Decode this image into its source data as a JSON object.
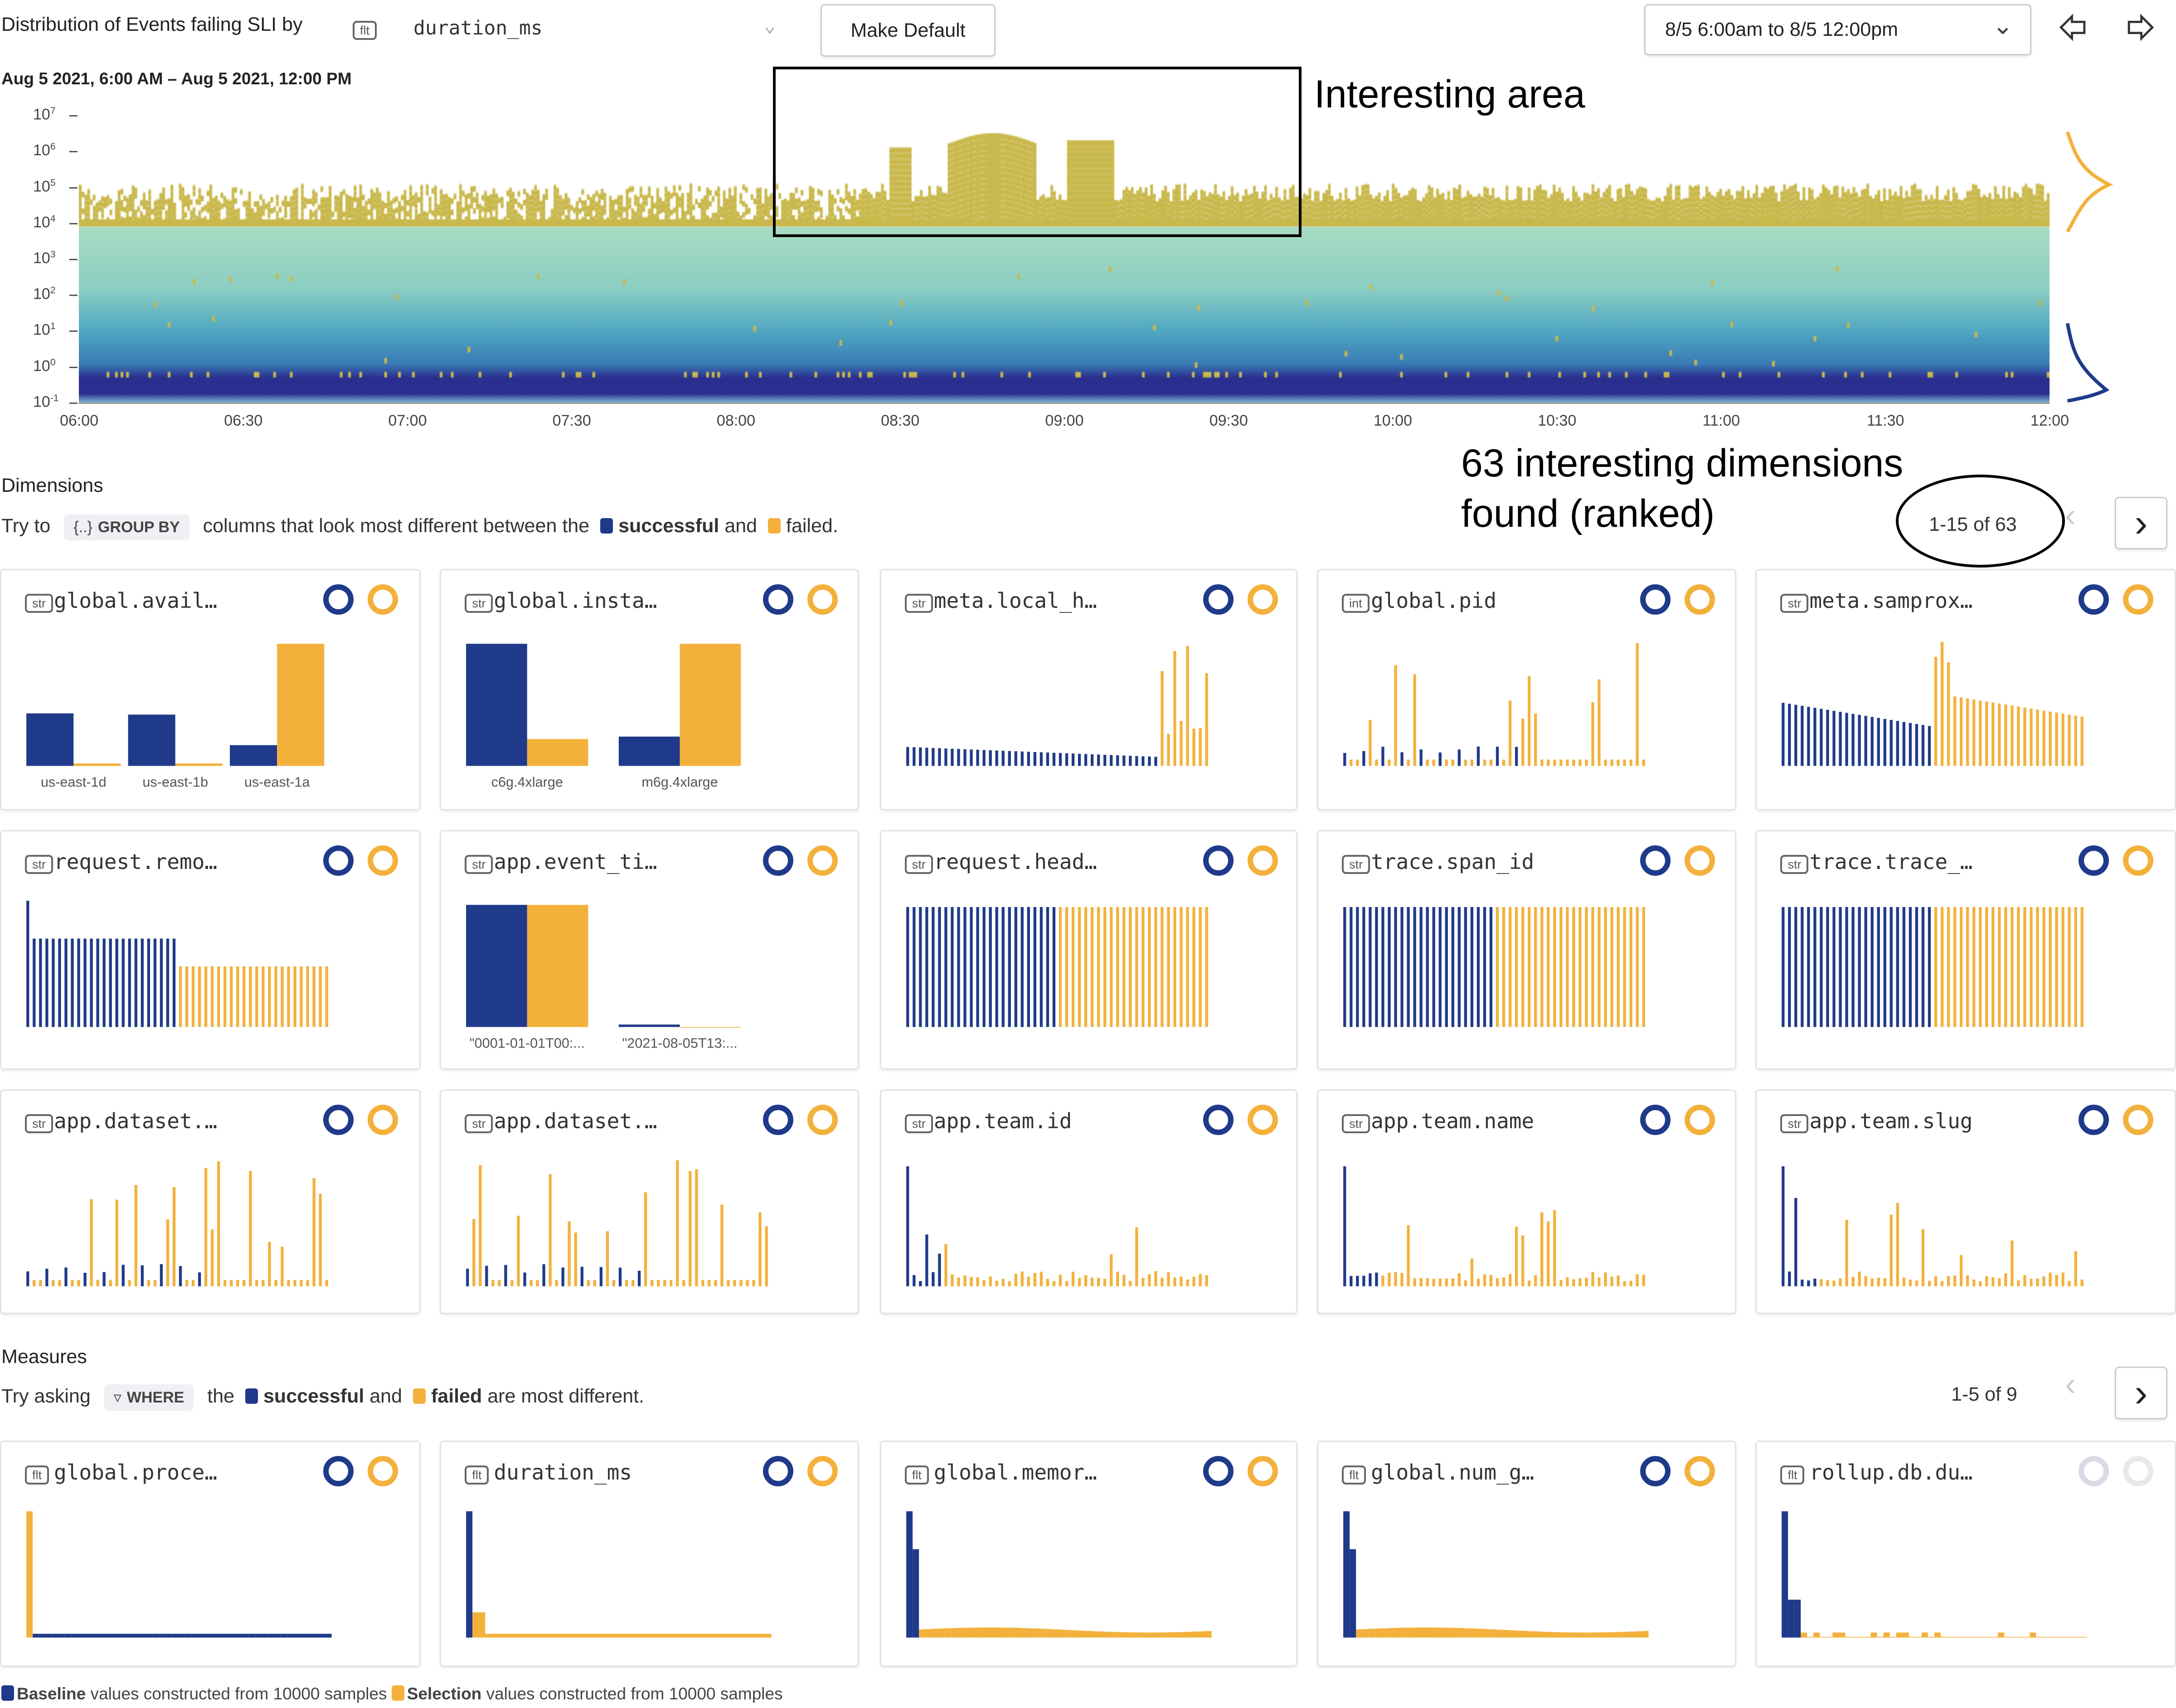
{
  "header": {
    "title": "Distribution of Events failing SLI by",
    "field_type": "flt",
    "field": "duration_ms",
    "make_default": "Make Default",
    "time_range": "8/5 6:00am to 8/5 12:00pm"
  },
  "colors": {
    "baseline": "#1f3a8a",
    "selection": "#f3b13c",
    "heat_high": "#c9b84c",
    "heat_mid": "#9fd9bf",
    "heat_low": "#2a2f8f"
  },
  "heatmap": {
    "range_label": "Aug 5 2021, 6:00 AM – Aug 5 2021, 12:00 PM",
    "y_ticks": [
      "10",
      "10",
      "10",
      "10",
      "10",
      "10",
      "10",
      "10",
      "10"
    ],
    "y_exps": [
      "7",
      "6",
      "5",
      "4",
      "3",
      "2",
      "1",
      "0",
      "-1"
    ],
    "x_ticks": [
      "06:00",
      "06:30",
      "07:00",
      "07:30",
      "08:00",
      "08:30",
      "09:00",
      "09:30",
      "10:00",
      "10:30",
      "11:00",
      "11:30",
      "12:00"
    ],
    "y_scale": "log"
  },
  "annotations": {
    "interesting_area": "Interesting area",
    "dimensions_note_1": "63 interesting dimensions",
    "dimensions_note_2": "found (ranked)"
  },
  "dimensions": {
    "heading": "Dimensions",
    "hint_pre": "Try to",
    "hint_pill": "GROUP BY",
    "hint_mid": "columns that look most different between the",
    "successful": "successful",
    "and": "and",
    "failed": "failed.",
    "pager": "1-15 of 63",
    "cards": [
      {
        "type": "str",
        "name": "global.avail…",
        "chart": "bars",
        "categories": [
          "us-east-1d",
          "us-east-1b",
          "us-east-1a"
        ],
        "baseline": [
          0.43,
          0.42,
          0.17
        ],
        "selection": [
          0.02,
          0.02,
          1.0
        ]
      },
      {
        "type": "str",
        "name": "global.insta…",
        "chart": "bars",
        "categories": [
          "c6g.4xlarge",
          "m6g.4xlarge"
        ],
        "baseline": [
          1.0,
          0.24
        ],
        "selection": [
          0.22,
          1.0
        ]
      },
      {
        "type": "str",
        "name": "meta.local_h…",
        "chart": "spikes_right"
      },
      {
        "type": "int",
        "name": "global.pid",
        "chart": "spikes"
      },
      {
        "type": "str",
        "name": "meta.samprox…",
        "chart": "decay_split"
      },
      {
        "type": "str",
        "name": "request.remo…",
        "chart": "split_low"
      },
      {
        "type": "str",
        "name": "app.event_ti…",
        "chart": "bars",
        "categories": [
          "\"0001-01-01T00:...",
          "\"2021-08-05T13:..."
        ],
        "baseline": [
          1.0,
          0.02
        ],
        "selection": [
          1.0,
          0.0
        ]
      },
      {
        "type": "str",
        "name": "request.head…",
        "chart": "split"
      },
      {
        "type": "str",
        "name": "trace.span_id",
        "chart": "split"
      },
      {
        "type": "str",
        "name": "trace.trace_…",
        "chart": "split"
      },
      {
        "type": "str",
        "name": "app.dataset.…",
        "chart": "spikes"
      },
      {
        "type": "str",
        "name": "app.dataset.…",
        "chart": "spikes"
      },
      {
        "type": "str",
        "name": "app.team.id",
        "chart": "decay"
      },
      {
        "type": "str",
        "name": "app.team.name",
        "chart": "decay"
      },
      {
        "type": "str",
        "name": "app.team.slug",
        "chart": "decay"
      }
    ]
  },
  "measures": {
    "heading": "Measures",
    "hint_pre": "Try asking",
    "hint_pill": "WHERE",
    "hint_mid": "the",
    "successful": "successful",
    "and": "and",
    "failed": "failed",
    "hint_post": "are most different.",
    "pager": "1-5 of 9",
    "cards": [
      {
        "type": "flt",
        "name": "global.proce…",
        "chart": "hist_sel"
      },
      {
        "type": "flt",
        "name": "duration_ms",
        "chart": "hist_base"
      },
      {
        "type": "flt",
        "name": "global.memor…",
        "chart": "hist_base_wide"
      },
      {
        "type": "flt",
        "name": "global.num_g…",
        "chart": "hist_base_wide"
      },
      {
        "type": "flt",
        "name": "rollup.db.du…",
        "chart": "hist_mixed",
        "icons_loading": true
      }
    ]
  },
  "footer": {
    "baseline_bold": "Baseline",
    "baseline_rest": "values constructed from 10000 samples",
    "selection_bold": "Selection",
    "selection_rest": "values constructed from 10000 samples"
  }
}
